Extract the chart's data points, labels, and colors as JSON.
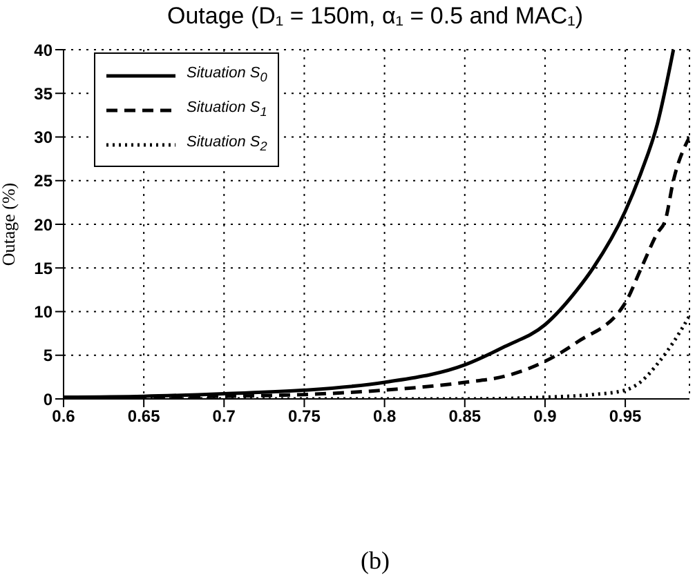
{
  "chart_data": {
    "type": "line",
    "title": "Outage (D₁ = 150m, α₁ = 0.5 and MAC₁)",
    "ylabel": "Outage (%)",
    "annotations": [
      "(b)"
    ],
    "xlim": [
      0.6,
      0.99
    ],
    "xticks": [
      0.6,
      0.65,
      0.7,
      0.75,
      0.8,
      0.85,
      0.9,
      0.95
    ],
    "ylim": [
      0,
      40
    ],
    "yticks": [
      0,
      5,
      10,
      15,
      20,
      25,
      30,
      35,
      40
    ],
    "grid": true,
    "legend": "top left",
    "marker": "none",
    "series": [
      {
        "name": "Situation S$_{0}$",
        "color": "#000000",
        "line_style": "solid",
        "x": [
          0.6,
          0.65,
          0.7,
          0.75,
          0.8,
          0.85,
          0.875,
          0.9,
          0.92,
          0.93,
          0.95,
          0.96,
          0.97,
          0.98
        ],
        "values": [
          0.2,
          0.3,
          0.6,
          1.0,
          1.9,
          3.9,
          6,
          8.5,
          12.5,
          15,
          21.5,
          26,
          31.5,
          40
        ]
      },
      {
        "name": "Situation S$_{1}$",
        "color": "#000000",
        "line_style": "dashed",
        "x": [
          0.6,
          0.7,
          0.75,
          0.8,
          0.85,
          0.875,
          0.9,
          0.92,
          0.95,
          0.96,
          0.97,
          0.975,
          0.98,
          0.99
        ],
        "values": [
          0.1,
          0.3,
          0.5,
          1.0,
          1.9,
          2.6,
          4.3,
          6.5,
          11,
          15,
          19,
          20.5,
          25,
          30
        ]
      },
      {
        "name": "Situation S$_{2}$",
        "color": "#000000",
        "line_style": "dotted",
        "x": [
          0.6,
          0.85,
          0.9,
          0.93,
          0.95,
          0.96,
          0.97,
          0.98,
          0.99
        ],
        "values": [
          0,
          0,
          0.2,
          0.5,
          1.0,
          2,
          4,
          6.5,
          9.5
        ]
      }
    ]
  }
}
